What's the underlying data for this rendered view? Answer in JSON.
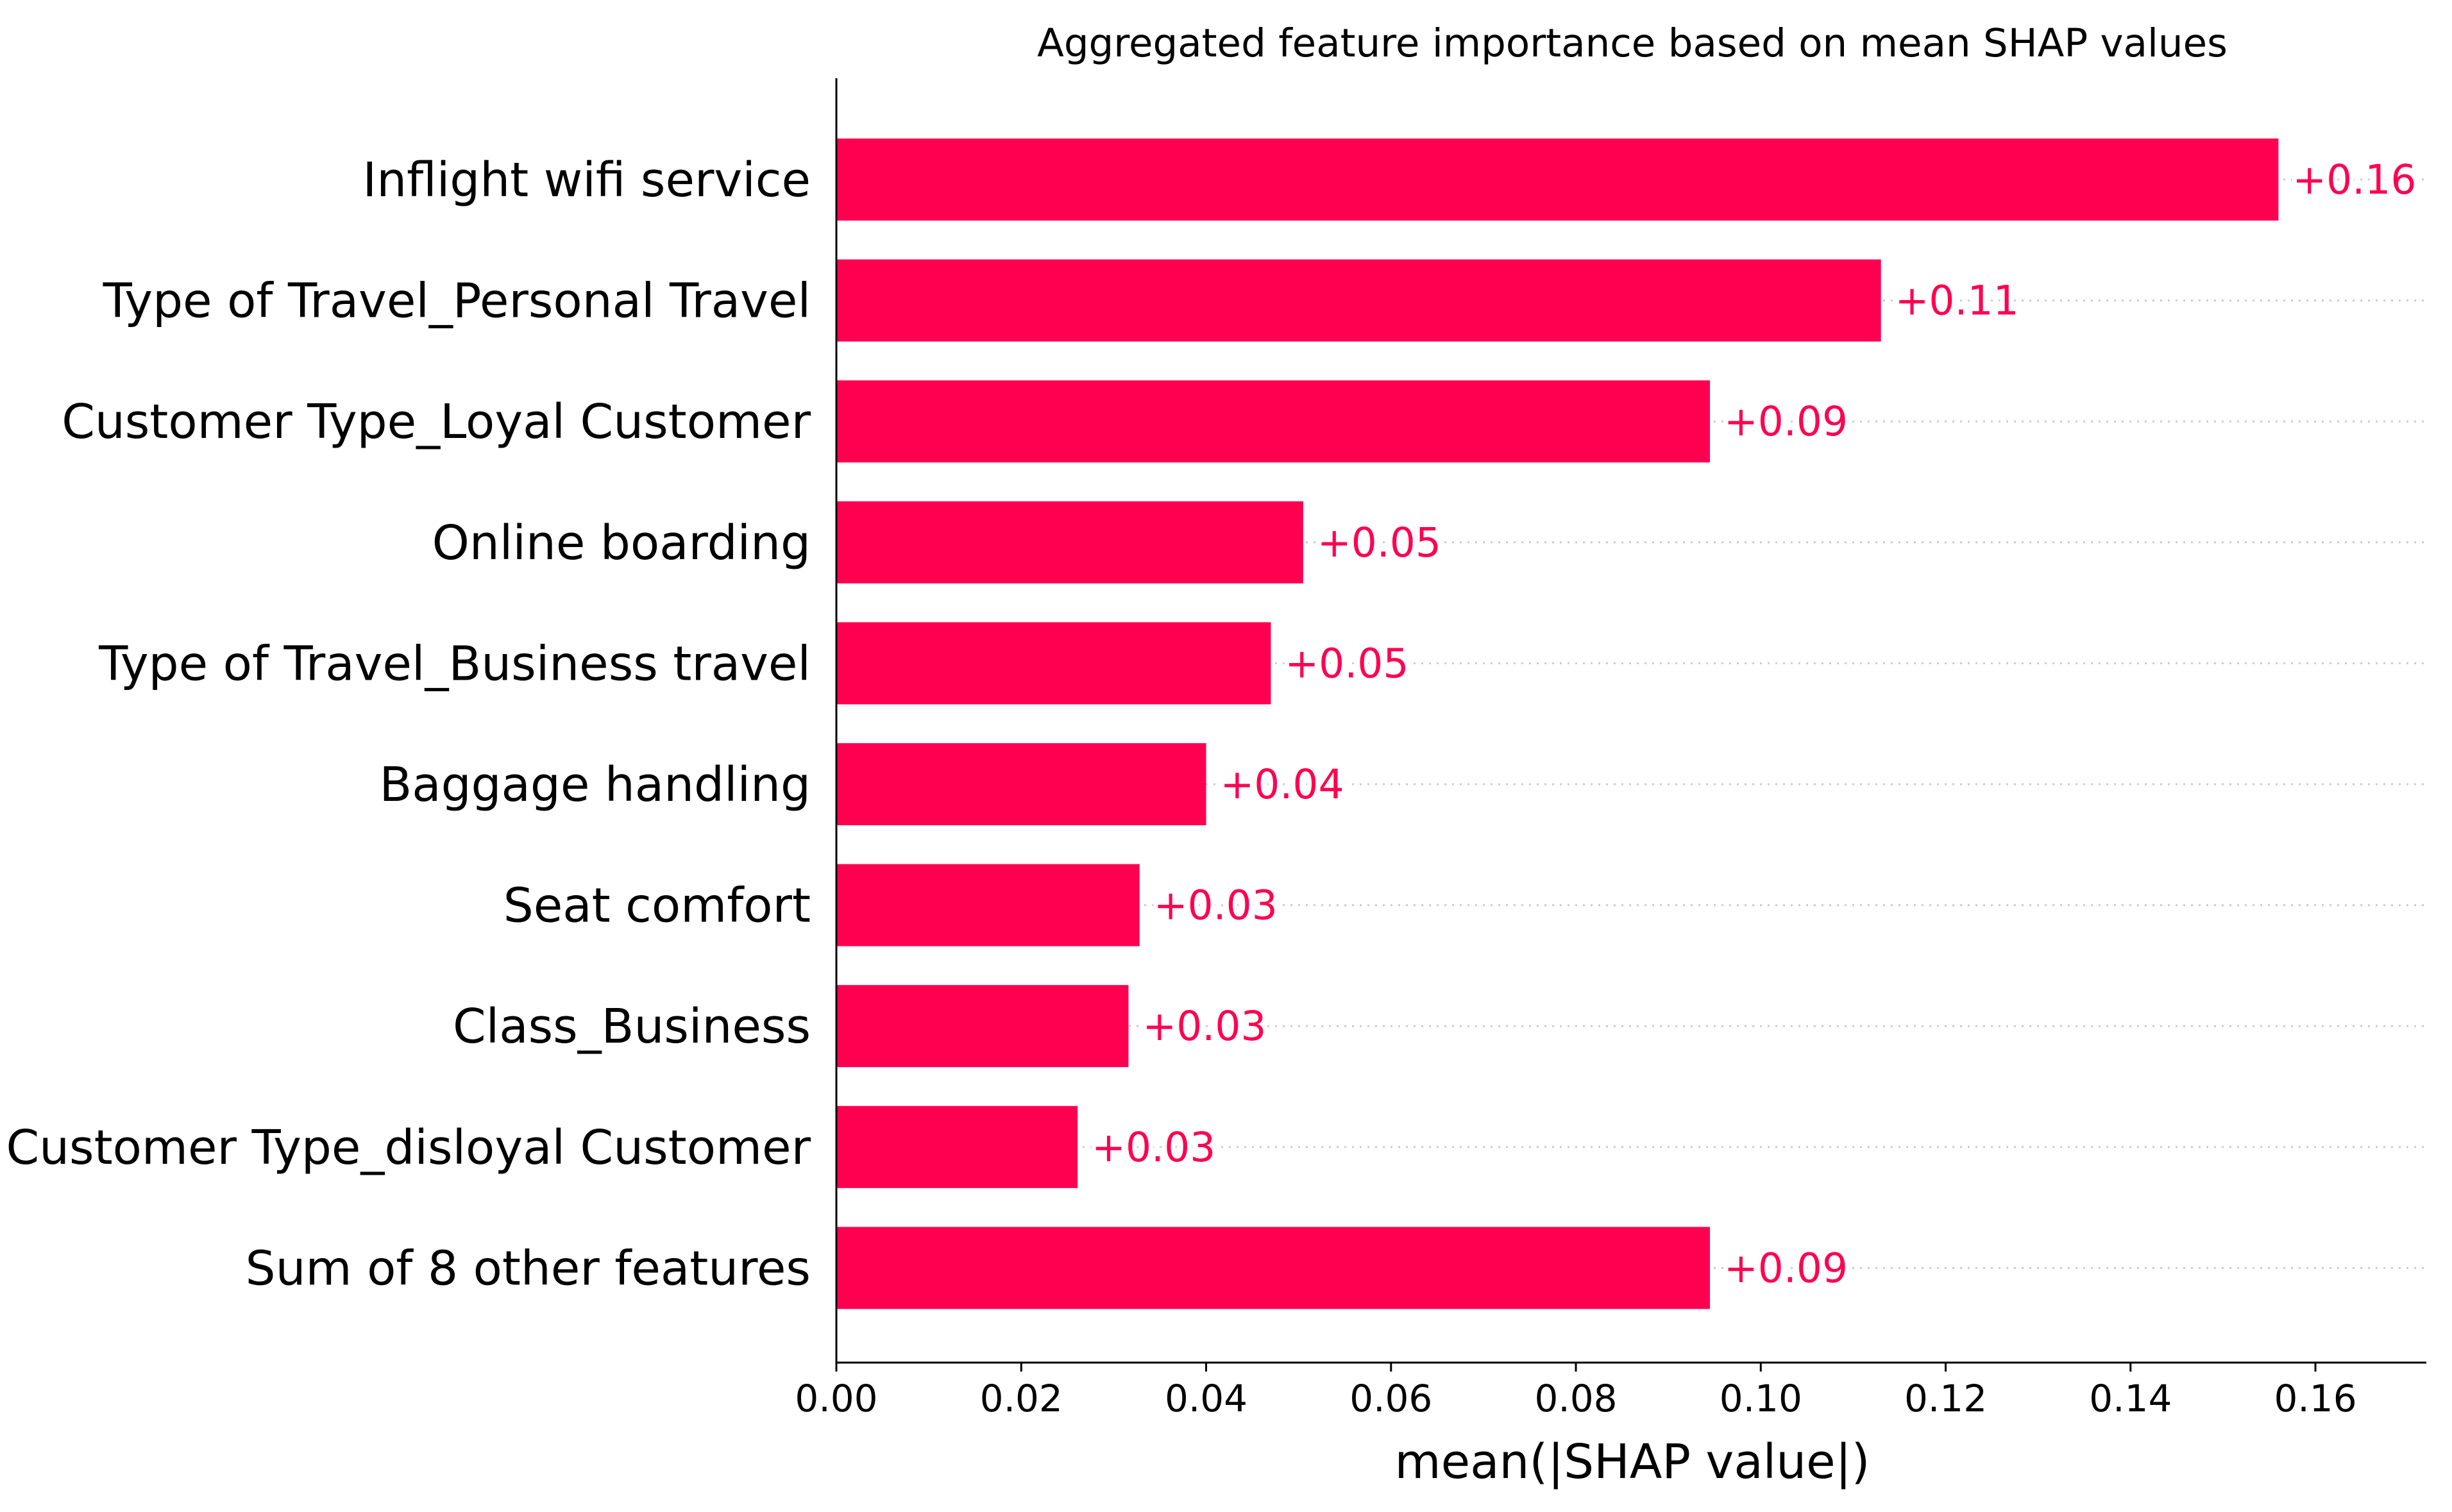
{
  "chart_data": {
    "type": "bar",
    "orientation": "horizontal",
    "title": "Aggregated feature importance based on mean SHAP values",
    "xlabel": "mean(|SHAP value|)",
    "ylabel": "",
    "categories": [
      "Inflight wifi service",
      "Type of Travel_Personal Travel",
      "Customer Type_Loyal Customer",
      "Online boarding",
      "Type of Travel_Business travel",
      "Baggage handling",
      "Seat comfort",
      "Class_Business",
      "Customer Type_disloyal Customer",
      "Sum of 8 other features"
    ],
    "values": [
      0.156,
      0.113,
      0.0945,
      0.0505,
      0.047,
      0.04,
      0.0328,
      0.0316,
      0.0261,
      0.0945
    ],
    "data_labels": [
      "+0.16",
      "+0.11",
      "+0.09",
      "+0.05",
      "+0.05",
      "+0.04",
      "+0.03",
      "+0.03",
      "+0.03",
      "+0.09"
    ],
    "xlim": [
      0,
      0.172
    ],
    "xticks": [
      0.0,
      0.02,
      0.04,
      0.06,
      0.08,
      0.1,
      0.12,
      0.14,
      0.16
    ],
    "xtick_labels": [
      "0.00",
      "0.02",
      "0.04",
      "0.06",
      "0.08",
      "0.10",
      "0.12",
      "0.14",
      "0.16"
    ],
    "grid": "dotted row guides",
    "legend": "none",
    "bar_color": "#ff0051",
    "label_color": "#ff0051",
    "guide_color": "#cccccc"
  }
}
